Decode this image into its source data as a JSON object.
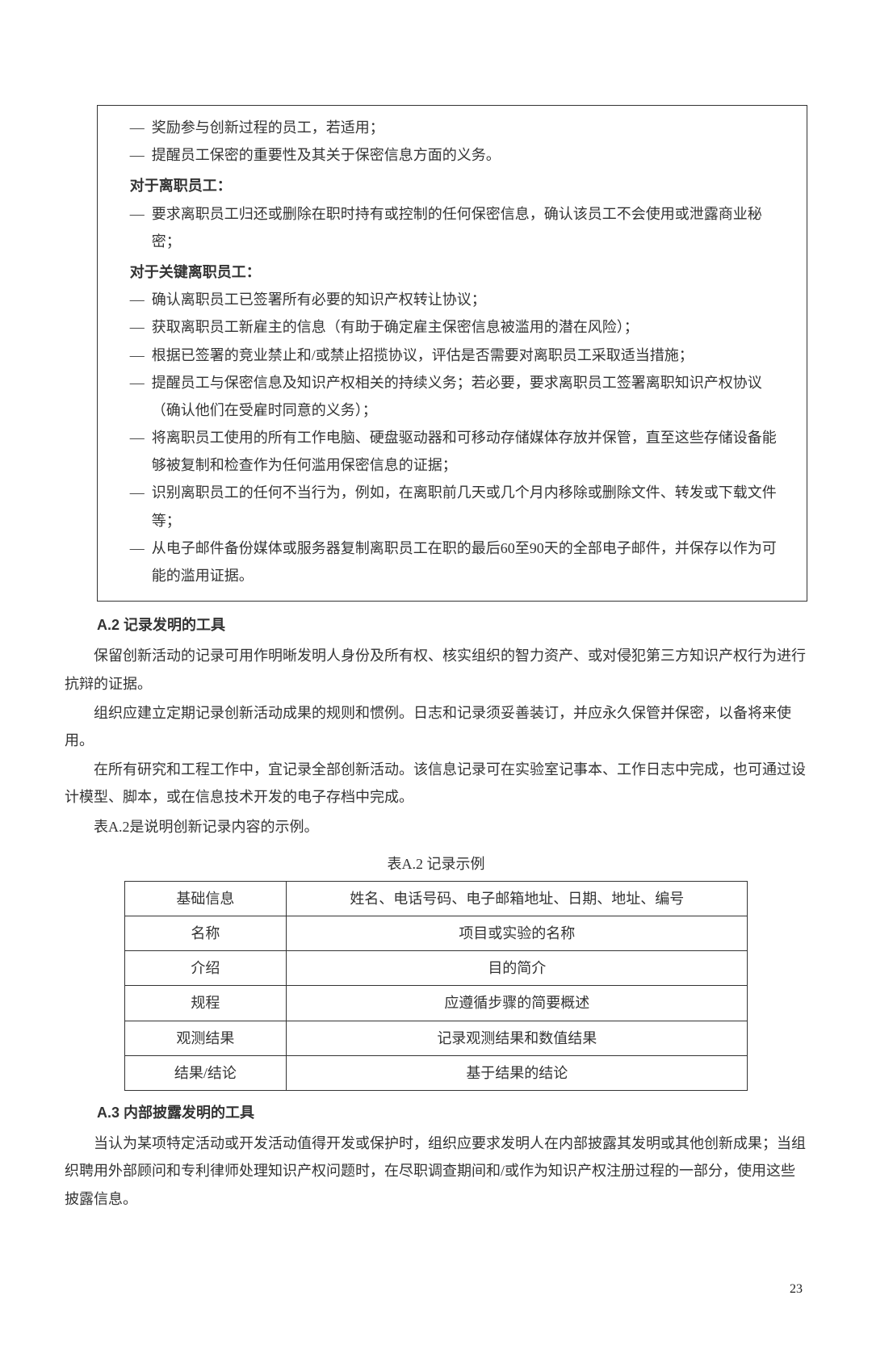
{
  "box": {
    "intro_items": [
      "奖励参与创新过程的员工，若适用；",
      "提醒员工保密的重要性及其关于保密信息方面的义务。"
    ],
    "sub1_title": "对于离职员工：",
    "sub1_items": [
      "要求离职员工归还或删除在职时持有或控制的任何保密信息，确认该员工不会使用或泄露商业秘密；"
    ],
    "sub2_title": "对于关键离职员工：",
    "sub2_items": [
      "确认离职员工已签署所有必要的知识产权转让协议；",
      "获取离职员工新雇主的信息（有助于确定雇主保密信息被滥用的潜在风险）；",
      "根据已签署的竞业禁止和/或禁止招揽协议，评估是否需要对离职员工采取适当措施；",
      "提醒员工与保密信息及知识产权相关的持续义务；若必要，要求离职员工签署离职知识产权协议（确认他们在受雇时同意的义务）；",
      "将离职员工使用的所有工作电脑、硬盘驱动器和可移动存储媒体存放并保管，直至这些存储设备能够被复制和检查作为任何滥用保密信息的证据；",
      "识别离职员工的任何不当行为，例如，在离职前几天或几个月内移除或删除文件、转发或下载文件等；",
      "从电子邮件备份媒体或服务器复制离职员工在职的最后60至90天的全部电子邮件，并保存以作为可能的滥用证据。"
    ]
  },
  "secA2": {
    "heading": "A.2  记录发明的工具",
    "p1": "保留创新活动的记录可用作明晰发明人身份及所有权、核实组织的智力资产、或对侵犯第三方知识产权行为进行抗辩的证据。",
    "p2": "组织应建立定期记录创新活动成果的规则和惯例。日志和记录须妥善装订，并应永久保管并保密，以备将来使用。",
    "p3": "在所有研究和工程工作中，宜记录全部创新活动。该信息记录可在实验室记事本、工作日志中完成，也可通过设计模型、脚本，或在信息技术开发的电子存档中完成。",
    "p4": "表A.2是说明创新记录内容的示例。"
  },
  "tableA2": {
    "caption": "表A.2  记录示例",
    "rows": [
      {
        "c1": "基础信息",
        "c2": "姓名、电话号码、电子邮箱地址、日期、地址、编号"
      },
      {
        "c1": "名称",
        "c2": "项目或实验的名称"
      },
      {
        "c1": "介绍",
        "c2": "目的简介"
      },
      {
        "c1": "规程",
        "c2": "应遵循步骤的简要概述"
      },
      {
        "c1": "观测结果",
        "c2": "记录观测结果和数值结果"
      },
      {
        "c1": "结果/结论",
        "c2": "基于结果的结论"
      }
    ]
  },
  "secA3": {
    "heading": "A.3  内部披露发明的工具",
    "p1": "当认为某项特定活动或开发活动值得开发或保护时，组织应要求发明人在内部披露其发明或其他创新成果；当组织聘用外部顾问和专利律师处理知识产权问题时，在尽职调查期间和/或作为知识产权注册过程的一部分，使用这些披露信息。"
  },
  "pageNumber": "23"
}
